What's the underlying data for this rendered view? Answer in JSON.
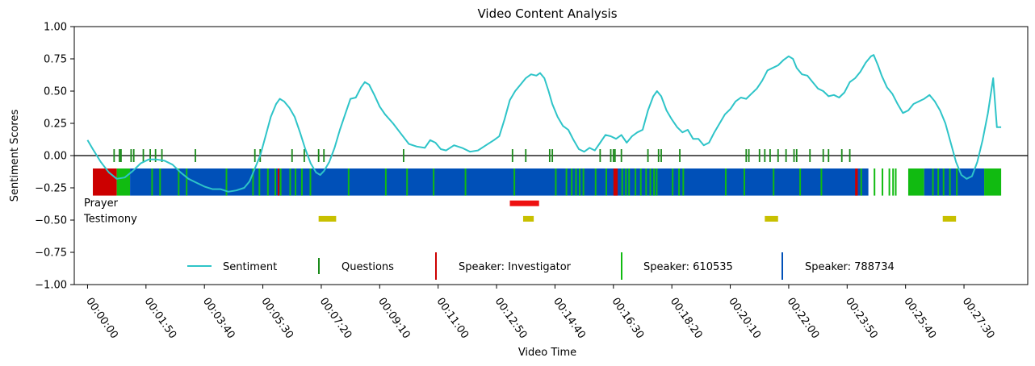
{
  "chart_data": {
    "type": "line",
    "title": "Video Content Analysis",
    "xlabel": "Video Time",
    "ylabel": "Sentiment Scores",
    "ylim": [
      -1.0,
      1.0
    ],
    "xlim_seconds": [
      -25,
      1770
    ],
    "grid": false,
    "legend_position": "bottom-center",
    "y_ticks": [
      "1.00",
      "0.75",
      "0.50",
      "0.25",
      "0.00",
      "−0.25",
      "−0.50",
      "−0.75",
      "−1.00"
    ],
    "y_tick_values": [
      1.0,
      0.75,
      0.5,
      0.25,
      0.0,
      -0.25,
      -0.5,
      -0.75,
      -1.0
    ],
    "x_ticks": [
      "00:00:00",
      "00:01:50",
      "00:03:40",
      "00:05:30",
      "00:07:20",
      "00:09:10",
      "00:11:00",
      "00:12:50",
      "00:14:40",
      "00:16:30",
      "00:18:20",
      "00:20:10",
      "00:22:00",
      "00:23:50",
      "00:25:40",
      "00:27:30"
    ],
    "x_tick_seconds": [
      0,
      110,
      220,
      330,
      440,
      550,
      660,
      770,
      880,
      990,
      1100,
      1210,
      1320,
      1430,
      1540,
      1650
    ],
    "colors": {
      "sentiment": "#2ec4c8",
      "questions": "#1a8a1a",
      "investigator": "#cc0000",
      "speaker_610535": "#11bb11",
      "speaker_788734": "#0050b8",
      "prayer": "#ee1111",
      "testimony": "#c8c000",
      "zero_line": "#222222"
    },
    "legend": [
      {
        "key": "sentiment",
        "label": "Sentiment",
        "marker": "line"
      },
      {
        "key": "questions",
        "label": "Questions",
        "marker": "vline"
      },
      {
        "key": "investigator",
        "label": "Speaker: Investigator",
        "marker": "vline"
      },
      {
        "key": "speaker_610535",
        "label": "Speaker: 610535",
        "marker": "vline"
      },
      {
        "key": "speaker_788734",
        "label": "Speaker: 788734",
        "marker": "vline"
      }
    ],
    "series": [
      {
        "name": "Sentiment",
        "points": [
          [
            0,
            0.12
          ],
          [
            10,
            0.05
          ],
          [
            25,
            -0.05
          ],
          [
            40,
            -0.13
          ],
          [
            55,
            -0.18
          ],
          [
            70,
            -0.17
          ],
          [
            85,
            -0.12
          ],
          [
            100,
            -0.06
          ],
          [
            115,
            -0.03
          ],
          [
            130,
            -0.03
          ],
          [
            145,
            -0.04
          ],
          [
            160,
            -0.07
          ],
          [
            175,
            -0.13
          ],
          [
            190,
            -0.18
          ],
          [
            205,
            -0.21
          ],
          [
            220,
            -0.24
          ],
          [
            235,
            -0.26
          ],
          [
            250,
            -0.26
          ],
          [
            265,
            -0.28
          ],
          [
            280,
            -0.27
          ],
          [
            295,
            -0.25
          ],
          [
            305,
            -0.2
          ],
          [
            315,
            -0.1
          ],
          [
            325,
            0.0
          ],
          [
            335,
            0.15
          ],
          [
            345,
            0.3
          ],
          [
            355,
            0.4
          ],
          [
            362,
            0.44
          ],
          [
            370,
            0.42
          ],
          [
            380,
            0.37
          ],
          [
            390,
            0.3
          ],
          [
            400,
            0.18
          ],
          [
            410,
            0.05
          ],
          [
            420,
            -0.06
          ],
          [
            430,
            -0.13
          ],
          [
            438,
            -0.15
          ],
          [
            445,
            -0.12
          ],
          [
            455,
            -0.05
          ],
          [
            465,
            0.06
          ],
          [
            475,
            0.2
          ],
          [
            485,
            0.32
          ],
          [
            495,
            0.44
          ],
          [
            505,
            0.45
          ],
          [
            515,
            0.53
          ],
          [
            522,
            0.57
          ],
          [
            530,
            0.55
          ],
          [
            540,
            0.47
          ],
          [
            550,
            0.38
          ],
          [
            560,
            0.32
          ],
          [
            575,
            0.25
          ],
          [
            590,
            0.17
          ],
          [
            605,
            0.09
          ],
          [
            620,
            0.07
          ],
          [
            635,
            0.06
          ],
          [
            645,
            0.12
          ],
          [
            655,
            0.1
          ],
          [
            665,
            0.05
          ],
          [
            675,
            0.04
          ],
          [
            690,
            0.08
          ],
          [
            705,
            0.06
          ],
          [
            720,
            0.03
          ],
          [
            735,
            0.04
          ],
          [
            750,
            0.08
          ],
          [
            765,
            0.12
          ],
          [
            775,
            0.15
          ],
          [
            785,
            0.28
          ],
          [
            795,
            0.43
          ],
          [
            805,
            0.5
          ],
          [
            815,
            0.55
          ],
          [
            825,
            0.6
          ],
          [
            835,
            0.63
          ],
          [
            845,
            0.62
          ],
          [
            852,
            0.64
          ],
          [
            860,
            0.6
          ],
          [
            868,
            0.5
          ],
          [
            875,
            0.4
          ],
          [
            885,
            0.3
          ],
          [
            895,
            0.23
          ],
          [
            905,
            0.2
          ],
          [
            915,
            0.12
          ],
          [
            925,
            0.05
          ],
          [
            935,
            0.03
          ],
          [
            945,
            0.06
          ],
          [
            955,
            0.04
          ],
          [
            965,
            0.1
          ],
          [
            975,
            0.16
          ],
          [
            985,
            0.15
          ],
          [
            995,
            0.13
          ],
          [
            1005,
            0.16
          ],
          [
            1015,
            0.1
          ],
          [
            1025,
            0.15
          ],
          [
            1035,
            0.18
          ],
          [
            1045,
            0.2
          ],
          [
            1055,
            0.35
          ],
          [
            1065,
            0.46
          ],
          [
            1072,
            0.5
          ],
          [
            1080,
            0.46
          ],
          [
            1090,
            0.35
          ],
          [
            1100,
            0.28
          ],
          [
            1110,
            0.22
          ],
          [
            1120,
            0.18
          ],
          [
            1130,
            0.2
          ],
          [
            1140,
            0.13
          ],
          [
            1150,
            0.13
          ],
          [
            1160,
            0.08
          ],
          [
            1170,
            0.1
          ],
          [
            1180,
            0.18
          ],
          [
            1190,
            0.25
          ],
          [
            1200,
            0.32
          ],
          [
            1210,
            0.36
          ],
          [
            1220,
            0.42
          ],
          [
            1230,
            0.45
          ],
          [
            1240,
            0.44
          ],
          [
            1250,
            0.48
          ],
          [
            1260,
            0.52
          ],
          [
            1270,
            0.58
          ],
          [
            1280,
            0.66
          ],
          [
            1290,
            0.68
          ],
          [
            1300,
            0.7
          ],
          [
            1310,
            0.74
          ],
          [
            1320,
            0.77
          ],
          [
            1328,
            0.75
          ],
          [
            1335,
            0.68
          ],
          [
            1345,
            0.63
          ],
          [
            1355,
            0.62
          ],
          [
            1365,
            0.57
          ],
          [
            1375,
            0.52
          ],
          [
            1385,
            0.5
          ],
          [
            1395,
            0.46
          ],
          [
            1405,
            0.47
          ],
          [
            1415,
            0.45
          ],
          [
            1425,
            0.49
          ],
          [
            1435,
            0.57
          ],
          [
            1445,
            0.6
          ],
          [
            1455,
            0.65
          ],
          [
            1465,
            0.72
          ],
          [
            1475,
            0.77
          ],
          [
            1480,
            0.78
          ],
          [
            1488,
            0.7
          ],
          [
            1495,
            0.62
          ],
          [
            1505,
            0.53
          ],
          [
            1515,
            0.48
          ],
          [
            1525,
            0.4
          ],
          [
            1535,
            0.33
          ],
          [
            1545,
            0.35
          ],
          [
            1555,
            0.4
          ],
          [
            1565,
            0.42
          ],
          [
            1575,
            0.44
          ],
          [
            1585,
            0.47
          ],
          [
            1595,
            0.42
          ],
          [
            1605,
            0.35
          ],
          [
            1615,
            0.25
          ],
          [
            1625,
            0.1
          ],
          [
            1635,
            -0.05
          ],
          [
            1645,
            -0.15
          ],
          [
            1655,
            -0.18
          ],
          [
            1665,
            -0.16
          ],
          [
            1675,
            -0.05
          ],
          [
            1685,
            0.12
          ],
          [
            1695,
            0.33
          ],
          [
            1705,
            0.6
          ],
          [
            1712,
            0.22
          ],
          [
            1720,
            0.22
          ]
        ]
      }
    ],
    "question_times": [
      50,
      60,
      63,
      82,
      87,
      105,
      118,
      128,
      140,
      203,
      315,
      325,
      385,
      408,
      435,
      445,
      595,
      800,
      825,
      870,
      875,
      965,
      985,
      990,
      993,
      1005,
      1055,
      1075,
      1080,
      1115,
      1240,
      1245,
      1265,
      1275,
      1285,
      1300,
      1315,
      1330,
      1335,
      1360,
      1385,
      1395,
      1420,
      1435
    ],
    "speaker_band": {
      "y_top": -0.1,
      "y_bottom": -0.31,
      "segments": [
        {
          "start": 10,
          "end": 55,
          "speaker": "investigator"
        },
        {
          "start": 55,
          "end": 80,
          "speaker": "speaker_610535"
        },
        {
          "start": 80,
          "end": 1470,
          "speaker": "speaker_788734"
        },
        {
          "start": 990,
          "end": 998,
          "speaker": "investigator"
        },
        {
          "start": 1445,
          "end": 1450,
          "speaker": "investigator"
        },
        {
          "start": 1545,
          "end": 1575,
          "speaker": "speaker_610535"
        },
        {
          "start": 1575,
          "end": 1688,
          "speaker": "speaker_788734"
        },
        {
          "start": 1688,
          "end": 1720,
          "speaker": "speaker_610535"
        }
      ],
      "thin_marks": [
        {
          "t": 120,
          "speaker": "speaker_610535"
        },
        {
          "t": 135,
          "speaker": "speaker_610535"
        },
        {
          "t": 170,
          "speaker": "speaker_610535"
        },
        {
          "t": 185,
          "speaker": "speaker_610535"
        },
        {
          "t": 260,
          "speaker": "speaker_610535"
        },
        {
          "t": 310,
          "speaker": "speaker_610535"
        },
        {
          "t": 322,
          "speaker": "speaker_610535"
        },
        {
          "t": 338,
          "speaker": "speaker_610535"
        },
        {
          "t": 352,
          "speaker": "speaker_610535"
        },
        {
          "t": 358,
          "speaker": "investigator"
        },
        {
          "t": 362,
          "speaker": "speaker_610535"
        },
        {
          "t": 380,
          "speaker": "speaker_610535"
        },
        {
          "t": 390,
          "speaker": "speaker_610535"
        },
        {
          "t": 402,
          "speaker": "speaker_610535"
        },
        {
          "t": 418,
          "speaker": "speaker_610535"
        },
        {
          "t": 490,
          "speaker": "speaker_610535"
        },
        {
          "t": 560,
          "speaker": "speaker_610535"
        },
        {
          "t": 600,
          "speaker": "speaker_610535"
        },
        {
          "t": 650,
          "speaker": "speaker_610535"
        },
        {
          "t": 710,
          "speaker": "speaker_610535"
        },
        {
          "t": 802,
          "speaker": "speaker_610535"
        },
        {
          "t": 880,
          "speaker": "speaker_610535"
        },
        {
          "t": 900,
          "speaker": "speaker_610535"
        },
        {
          "t": 910,
          "speaker": "speaker_610535"
        },
        {
          "t": 918,
          "speaker": "speaker_610535"
        },
        {
          "t": 925,
          "speaker": "speaker_610535"
        },
        {
          "t": 932,
          "speaker": "speaker_610535"
        },
        {
          "t": 955,
          "speaker": "speaker_610535"
        },
        {
          "t": 975,
          "speaker": "speaker_610535"
        },
        {
          "t": 1005,
          "speaker": "speaker_610535"
        },
        {
          "t": 1012,
          "speaker": "speaker_610535"
        },
        {
          "t": 1018,
          "speaker": "speaker_610535"
        },
        {
          "t": 1030,
          "speaker": "speaker_610535"
        },
        {
          "t": 1040,
          "speaker": "speaker_610535"
        },
        {
          "t": 1050,
          "speaker": "speaker_610535"
        },
        {
          "t": 1058,
          "speaker": "speaker_610535"
        },
        {
          "t": 1065,
          "speaker": "speaker_610535"
        },
        {
          "t": 1070,
          "speaker": "speaker_610535"
        },
        {
          "t": 1100,
          "speaker": "speaker_610535"
        },
        {
          "t": 1112,
          "speaker": "speaker_610535"
        },
        {
          "t": 1120,
          "speaker": "speaker_610535"
        },
        {
          "t": 1200,
          "speaker": "speaker_610535"
        },
        {
          "t": 1235,
          "speaker": "speaker_610535"
        },
        {
          "t": 1290,
          "speaker": "speaker_610535"
        },
        {
          "t": 1340,
          "speaker": "speaker_610535"
        },
        {
          "t": 1380,
          "speaker": "speaker_610535"
        },
        {
          "t": 1455,
          "speaker": "speaker_610535"
        },
        {
          "t": 1480,
          "speaker": "speaker_610535"
        },
        {
          "t": 1495,
          "speaker": "speaker_610535"
        },
        {
          "t": 1508,
          "speaker": "speaker_610535"
        },
        {
          "t": 1515,
          "speaker": "speaker_610535"
        },
        {
          "t": 1520,
          "speaker": "speaker_610535"
        },
        {
          "t": 1590,
          "speaker": "speaker_610535"
        },
        {
          "t": 1600,
          "speaker": "speaker_610535"
        },
        {
          "t": 1610,
          "speaker": "speaker_610535"
        },
        {
          "t": 1622,
          "speaker": "speaker_610535"
        },
        {
          "t": 1635,
          "speaker": "speaker_610535"
        }
      ]
    },
    "annotations": [
      {
        "label": "Prayer",
        "key": "prayer",
        "y": -0.37,
        "segments": [
          {
            "start": 795,
            "end": 850
          }
        ]
      },
      {
        "label": "Testimony",
        "key": "testimony",
        "y": -0.49,
        "segments": [
          {
            "start": 435,
            "end": 468
          },
          {
            "start": 820,
            "end": 840
          },
          {
            "start": 1275,
            "end": 1300
          },
          {
            "start": 1610,
            "end": 1635
          }
        ]
      }
    ]
  }
}
